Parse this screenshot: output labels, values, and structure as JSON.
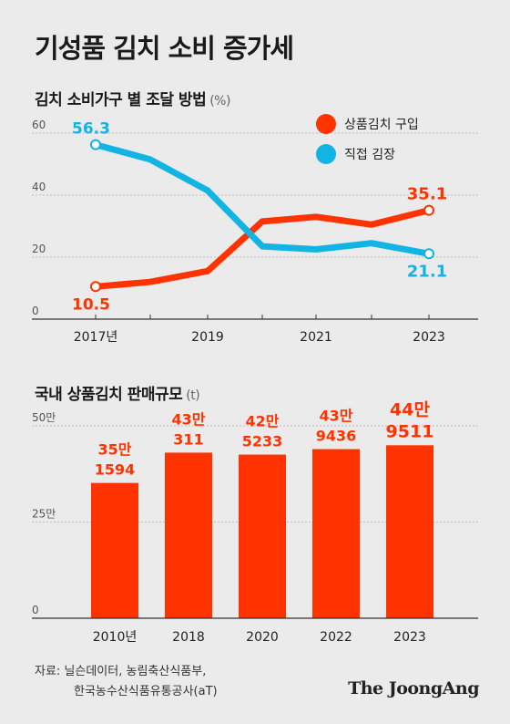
{
  "title": "기성품 김치 소비 증가세",
  "source": {
    "line1": "자료: 닐슨데이터, 농림축산식품부,",
    "line2": "한국농수산식품유통공사(aT)"
  },
  "logo": "The JoongAng",
  "colors": {
    "red": "#ff3300",
    "blue": "#12b4e4",
    "grid": "#bbbbbb",
    "axis": "#333333"
  },
  "chart_data": [
    {
      "type": "line",
      "title": "김치 소비가구 별 조달 방법",
      "unit": "(%)",
      "ylim": [
        0,
        60
      ],
      "y_ticks": [
        "0",
        "20",
        "40",
        "60"
      ],
      "x_ticks": [
        "2017년",
        "2019",
        "2021",
        "2023"
      ],
      "grid": true,
      "legend_position": "top-right",
      "series": [
        {
          "name": "상품김치 구입",
          "color": "#ff3300",
          "values": [
            10.5,
            12.0,
            15.5,
            31.5,
            33.0,
            30.5,
            35.1
          ],
          "start_label": "10.5",
          "end_label": "35.1"
        },
        {
          "name": "직접 김장",
          "color": "#12b4e4",
          "values": [
            56.3,
            51.5,
            41.5,
            23.5,
            22.5,
            24.5,
            21.1
          ],
          "start_label": "56.3",
          "end_label": "21.1"
        }
      ]
    },
    {
      "type": "bar",
      "title": "국내 상품김치 판매규모",
      "unit": "(t)",
      "categories": [
        "2010년",
        "2018",
        "2020",
        "2022",
        "2023"
      ],
      "values": [
        351594,
        430311,
        425233,
        439436,
        449511
      ],
      "data_labels": [
        [
          "35만",
          "1594"
        ],
        [
          "43만",
          "311"
        ],
        [
          "42만",
          "5233"
        ],
        [
          "43만",
          "9436"
        ],
        [
          "44만",
          "9511"
        ]
      ],
      "ylim": [
        0,
        500000
      ],
      "y_ticks": [
        "0",
        "25만",
        "50만"
      ],
      "grid": true,
      "color": "#ff3300"
    }
  ]
}
